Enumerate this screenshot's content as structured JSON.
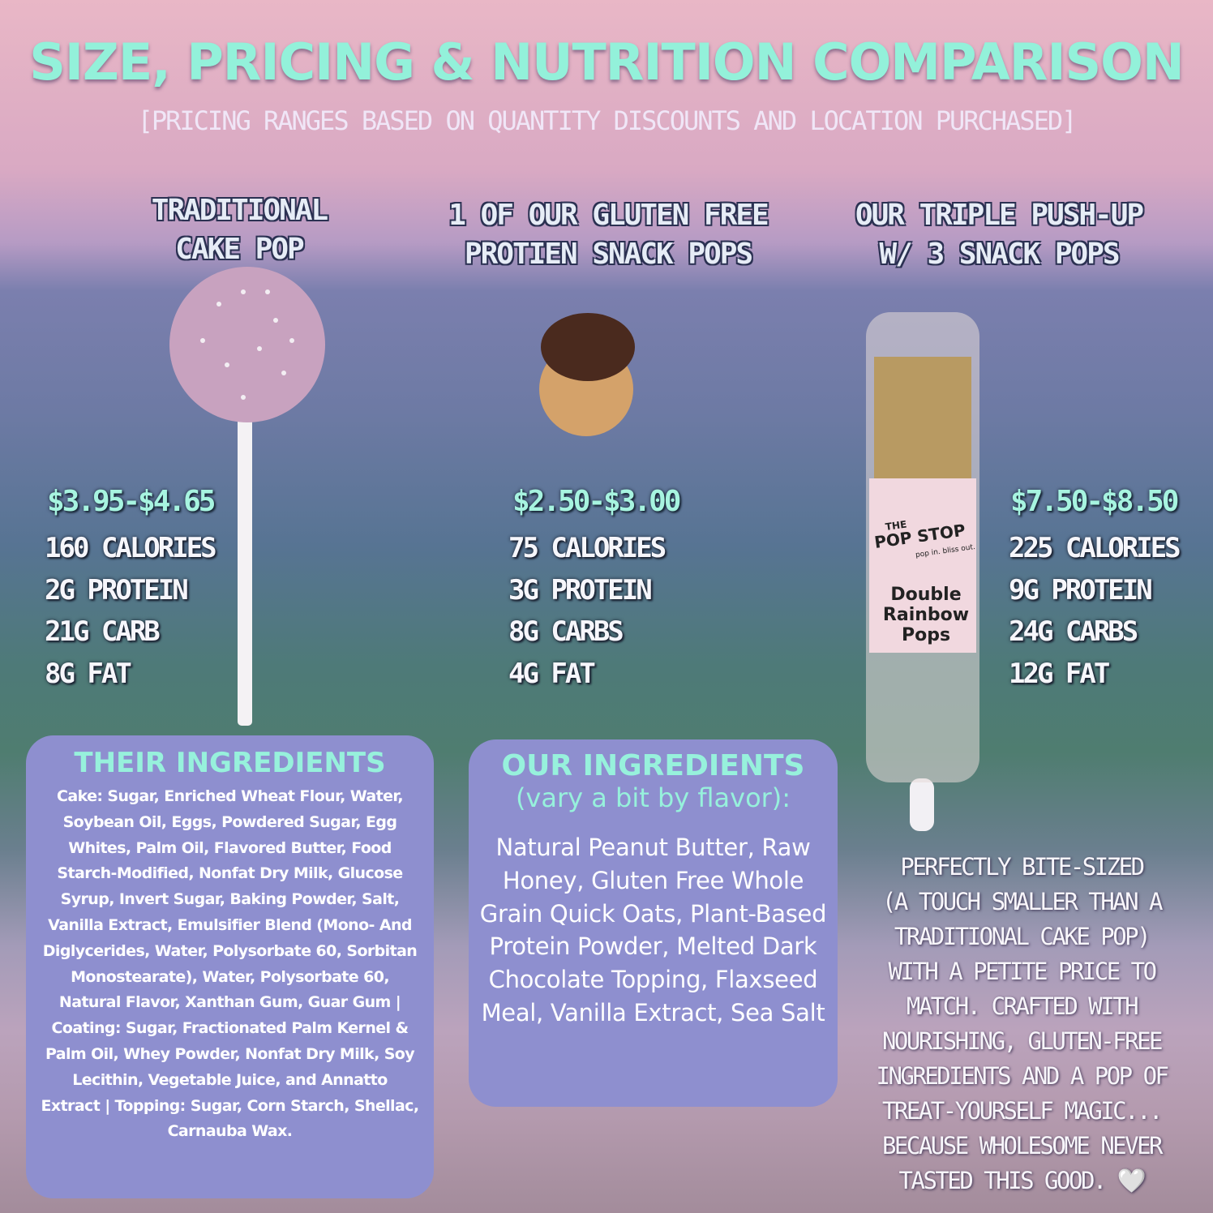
{
  "header": {
    "title": "SIZE, PRICING & NUTRITION COMPARISON",
    "subtitle": "[PRICING RANGES BASED ON QUANTITY DISCOUNTS AND LOCATION PURCHASED]"
  },
  "products": [
    {
      "name_lines": [
        "TRADITIONAL",
        "CAKE POP"
      ],
      "price": "$3.95-$4.65",
      "nutrition": [
        "160 CALORIES",
        "2G PROTEIN",
        "21G CARB",
        "8G FAT"
      ]
    },
    {
      "name_lines": [
        "1 OF OUR GLUTEN FREE",
        "PROTIEN SNACK POPS"
      ],
      "price": "$2.50-$3.00",
      "nutrition": [
        "75 CALORIES",
        "3G PROTEIN",
        "8G CARBS",
        "4G FAT"
      ]
    },
    {
      "name_lines": [
        "OUR TRIPLE PUSH-UP",
        "W/ 3 SNACK POPS"
      ],
      "price": "$7.50-$8.50",
      "nutrition": [
        "225 CALORIES",
        "9G PROTEIN",
        "24G CARBS",
        "12G FAT"
      ],
      "package": {
        "brand_lines": [
          "THE",
          "POP STOP"
        ],
        "slogan": "pop in. bliss out.",
        "flavor_lines": [
          "Double",
          "Rainbow",
          "Pops"
        ]
      }
    }
  ],
  "their_ingredients": {
    "title": "THEIR INGREDIENTS",
    "text": "Cake: Sugar, Enriched Wheat Flour, Water, Soybean Oil, Eggs, Powdered Sugar, Egg Whites, Palm Oil, Flavored Butter, Food Starch-Modified, Nonfat Dry Milk, Glucose Syrup, Invert Sugar, Baking Powder, Salt, Vanilla Extract, Emulsifier Blend (Mono- And Diglycerides, Water, Polysorbate 60, Sorbitan Monostearate), Water, Polysorbate 60, Natural Flavor, Xanthan Gum, Guar Gum | Coating: Sugar, Fractionated Palm Kernel & Palm Oil, Whey Powder, Nonfat Dry Milk, Soy Lecithin, Vegetable Juice, and Annatto Extract | Topping: Sugar, Corn Starch, Shellac, Carnauba Wax."
  },
  "our_ingredients": {
    "title": "OUR INGREDIENTS",
    "subtitle": "(vary a bit by flavor):",
    "text": "Natural Peanut Butter, Raw Honey, Gluten Free Whole Grain Quick Oats, Plant-Based Protein Powder, Melted Dark Chocolate Topping, Flaxseed Meal, Vanilla Extract, Sea Salt"
  },
  "tagline": {
    "lines": [
      "PERFECTLY BITE-SIZED",
      "(A TOUCH SMALLER THAN A",
      "TRADITIONAL CAKE POP)",
      "WITH A PETITE PRICE TO",
      "MATCH. CRAFTED WITH",
      "NOURISHING, GLUTEN-FREE",
      "INGREDIENTS AND A POP OF",
      "TREAT-YOURSELF MAGIC...",
      "BECAUSE WHOLESOME NEVER",
      "TASTED THIS GOOD. 🤍"
    ]
  }
}
